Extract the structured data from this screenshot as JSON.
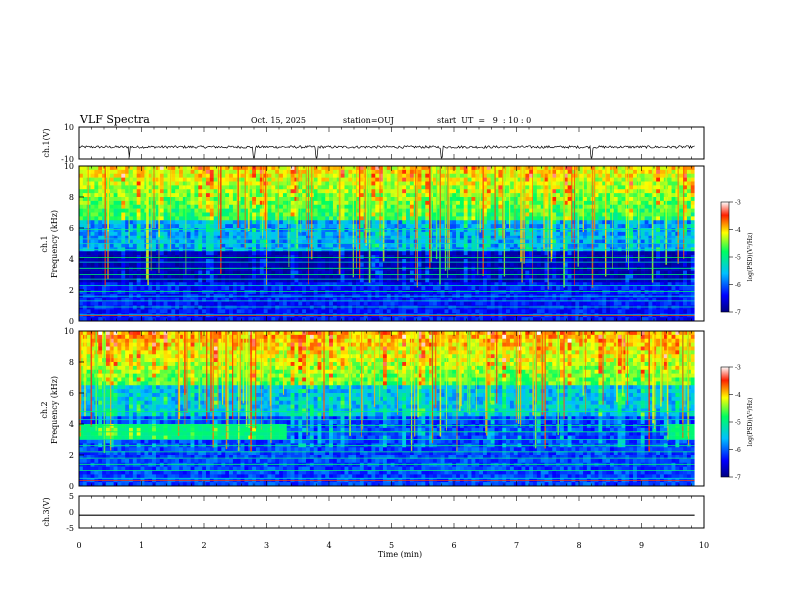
{
  "header": {
    "title": "VLF Spectra",
    "date": "Oct. 15, 2025",
    "station": "station=OUJ",
    "start_ut": "start  UT  =   9  : 10 : 0"
  },
  "chart_data": [
    {
      "type": "line",
      "panel": "ch1-waveform",
      "ylabel": "ch.1(V)",
      "ylim": [
        -10,
        10
      ],
      "yticks": [
        10,
        -10
      ],
      "baseline": -2.5,
      "spikes_min": [
        0.8,
        2.8,
        3.8,
        5.8,
        8.2
      ],
      "xlim": [
        0,
        10
      ]
    },
    {
      "type": "heatmap",
      "panel": "ch1-spectrogram",
      "ylabel_line1": "ch.1",
      "ylabel_line2": "Frequency (kHz)",
      "ylim": [
        0,
        10
      ],
      "yticks": [
        0,
        2,
        4,
        6,
        8,
        10
      ],
      "xlim": [
        0,
        9.85
      ],
      "colorbar": {
        "label": "log(PSD)(V²/Hz)",
        "range": [
          -7,
          -3
        ],
        "ticks": [
          -3,
          -4,
          -5,
          -6,
          -7
        ]
      },
      "constant_lines_khz": [
        0.4,
        0.9,
        1.3,
        1.6,
        1.9,
        2.3,
        2.7,
        3.0,
        3.4,
        3.8,
        4.1,
        4.6,
        5.0,
        5.3,
        5.9
      ],
      "quiet_band_khz": [
        2.5,
        4.5
      ]
    },
    {
      "type": "heatmap",
      "panel": "ch2-spectrogram",
      "ylabel_line1": "ch.2",
      "ylabel_line2": "Frequency (kHz)",
      "ylim": [
        0,
        10
      ],
      "yticks": [
        0,
        2,
        4,
        6,
        8,
        10
      ],
      "xlim": [
        0,
        9.85
      ],
      "colorbar": {
        "label": "log(PSD)(V²/Hz)",
        "range": [
          -7,
          -3
        ],
        "ticks": [
          -3,
          -4,
          -5,
          -6,
          -7
        ]
      },
      "band_3_5khz_minutes": [
        [
          0,
          3.3
        ],
        [
          9.4,
          9.85
        ]
      ],
      "constant_lines_khz": [
        0.5,
        1.0,
        1.4,
        1.8,
        2.2,
        2.6,
        3.0,
        3.5,
        3.9,
        4.3,
        4.8
      ]
    },
    {
      "type": "line",
      "panel": "ch3-waveform",
      "ylabel": "ch.3(V)",
      "ylim": [
        -5,
        5
      ],
      "yticks": [
        5,
        0,
        -5
      ],
      "baseline": -1.0,
      "xlim": [
        0,
        10
      ]
    }
  ],
  "xaxis": {
    "label": "Time (min)",
    "ticks": [
      0,
      1,
      2,
      3,
      4,
      5,
      6,
      7,
      8,
      9,
      10
    ]
  }
}
